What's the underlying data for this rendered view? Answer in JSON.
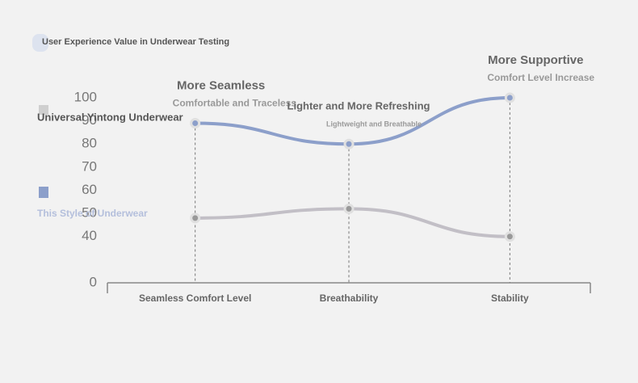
{
  "chart_data": {
    "type": "line",
    "title": "User Experience Value in Underwear Testing",
    "categories": [
      "Seamless Comfort Level",
      "Breathability",
      "Stability"
    ],
    "series": [
      {
        "name": "Universal Yintong Underwear",
        "color": "#c2bfc6",
        "values": [
          48,
          52,
          40
        ]
      },
      {
        "name": "This Style of Underwear",
        "color": "#8c9fca",
        "values": [
          89,
          80,
          100
        ]
      }
    ],
    "ylim": [
      0,
      100
    ],
    "yticks": [
      0,
      40,
      50,
      60,
      70,
      80,
      90,
      100
    ],
    "annotations": [
      {
        "title": "More Seamless",
        "text": "Comfortable and Traceless"
      },
      {
        "title": "Lighter and More Refreshing",
        "text": "Lightweight and Breathable"
      },
      {
        "title": "More Supportive",
        "text": "Comfort Level Increase"
      }
    ]
  }
}
